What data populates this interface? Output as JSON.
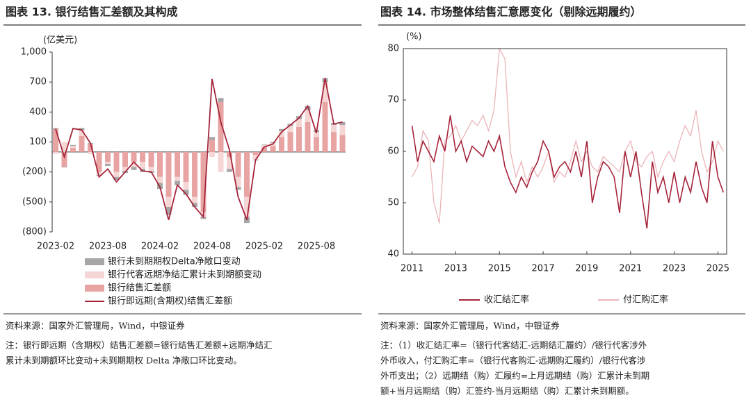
{
  "chart_data": [
    {
      "type": "bar",
      "title": "图表 13. 银行结售汇差额及其构成",
      "y_label": "(亿美元)",
      "categories": [
        "2023-02",
        null,
        null,
        null,
        null,
        null,
        "2023-08",
        null,
        null,
        null,
        null,
        null,
        "2024-02",
        null,
        null,
        null,
        null,
        null,
        "2024-08",
        null,
        null,
        null,
        null,
        null,
        "2025-02",
        null,
        null,
        null,
        null,
        null,
        "2025-08",
        null,
        null,
        null
      ],
      "ylim": [
        -800,
        1000
      ],
      "yticks": [
        {
          "value": 1000,
          "label": "1,000"
        },
        700,
        400,
        100,
        {
          "value": -200,
          "label": "(200)"
        },
        {
          "value": -500,
          "label": "(500)"
        },
        {
          "value": -800,
          "label": "(800)"
        }
      ],
      "negative_tick_color": "#c00000",
      "series": [
        {
          "name": "银行未到期期权Delta净敞口变动",
          "type": "bar",
          "color": "#a6a6a6",
          "values": [
            10,
            -5,
            10,
            20,
            10,
            -10,
            -20,
            -30,
            -20,
            -30,
            -30,
            -20,
            -60,
            -80,
            -40,
            -50,
            -40,
            -20,
            30,
            40,
            -30,
            -30,
            -60,
            -5,
            5,
            10,
            20,
            20,
            30,
            40,
            20,
            40,
            20,
            30
          ]
        },
        {
          "name": "银行代客远期净结汇累计未到期额变动",
          "type": "bar",
          "color": "#f6d5d5",
          "values": [
            -20,
            100,
            20,
            60,
            -20,
            -30,
            -20,
            -50,
            -40,
            -50,
            -70,
            -40,
            -60,
            -100,
            -40,
            -80,
            -60,
            -50,
            -50,
            -200,
            -120,
            -100,
            -200,
            -50,
            20,
            30,
            60,
            60,
            80,
            120,
            50,
            200,
            70,
            100
          ]
        },
        {
          "name": "银行结售汇差额",
          "type": "bar",
          "color": "#e8a3a3",
          "values": [
            230,
            -150,
            40,
            160,
            80,
            -200,
            -100,
            -200,
            -150,
            -100,
            -100,
            -150,
            -250,
            -450,
            -250,
            -300,
            -450,
            -600,
            120,
            500,
            -50,
            -250,
            -450,
            -30,
            50,
            60,
            150,
            200,
            250,
            300,
            150,
            500,
            200,
            170
          ]
        },
        {
          "name": "银行即远期(含期权)结售汇差额",
          "type": "line",
          "color": "#a5243a",
          "values": [
            230,
            -50,
            235,
            220,
            90,
            -250,
            -170,
            -300,
            -200,
            -100,
            -190,
            -200,
            -350,
            -680,
            -330,
            -420,
            -550,
            -650,
            730,
            300,
            20,
            -450,
            -680,
            -80,
            50,
            80,
            200,
            270,
            340,
            460,
            190,
            740,
            280,
            300
          ]
        }
      ],
      "source": "资料来源：国家外汇管理局，Wind，中银证券",
      "notes": [
        "注：银行即远期（含期权）结售汇差额=银行结售汇差额+远期净结汇",
        "累计未到期额环比变动+未到期期权 Delta 净敞口环比变动。"
      ]
    },
    {
      "type": "line",
      "title": "图表 14. 市场整体结售汇意愿变化（剔除远期履约）",
      "y_label": "(%)",
      "xlim": [
        2010.6,
        2025.4
      ],
      "xticks": [
        2011,
        2013,
        2015,
        2017,
        2019,
        2021,
        2023,
        2025
      ],
      "ylim": [
        40,
        80
      ],
      "yticks": [
        40,
        50,
        60,
        70,
        80
      ],
      "x": [
        2011,
        2011.25,
        2011.5,
        2011.75,
        2012,
        2012.25,
        2012.5,
        2012.75,
        2013,
        2013.25,
        2013.5,
        2013.75,
        2014,
        2014.25,
        2014.5,
        2014.75,
        2015,
        2015.25,
        2015.5,
        2015.75,
        2016,
        2016.25,
        2016.5,
        2016.75,
        2017,
        2017.25,
        2017.5,
        2017.75,
        2018,
        2018.25,
        2018.5,
        2018.75,
        2019,
        2019.25,
        2019.5,
        2019.75,
        2020,
        2020.25,
        2020.5,
        2020.75,
        2021,
        2021.25,
        2021.5,
        2021.75,
        2022,
        2022.25,
        2022.5,
        2022.75,
        2023,
        2023.25,
        2023.5,
        2023.75,
        2024,
        2024.25,
        2024.5,
        2024.75,
        2025,
        2025.25
      ],
      "legend": "bottom",
      "series": [
        {
          "name": "收汇结汇率",
          "color": "#a5243a",
          "width": 1.6,
          "values": [
            65,
            58,
            62,
            60,
            58,
            63,
            60,
            67,
            60,
            62,
            58,
            61,
            60,
            59,
            62,
            60,
            63,
            57,
            54,
            52,
            55,
            53,
            56,
            58,
            62,
            60,
            55,
            57,
            58,
            56,
            60,
            55,
            62,
            50,
            55,
            58,
            57,
            55,
            48,
            60,
            55,
            60,
            52,
            45,
            58,
            52,
            55,
            50,
            56,
            50,
            55,
            52,
            58,
            53,
            50,
            62,
            55,
            52
          ]
        },
        {
          "name": "付汇购汇率",
          "color": "#ebb4b8",
          "width": 1.3,
          "values": [
            55,
            57,
            64,
            62,
            50,
            46,
            62,
            63,
            65,
            62,
            64,
            66,
            65,
            67,
            64,
            68,
            80,
            78,
            60,
            55,
            58,
            54,
            57,
            55,
            57,
            60,
            54,
            56,
            55,
            58,
            62,
            58,
            60,
            57,
            56,
            59,
            58,
            57,
            56,
            60,
            62,
            58,
            57,
            59,
            60,
            55,
            58,
            60,
            58,
            62,
            65,
            63,
            68,
            60,
            56,
            58,
            62,
            60
          ]
        }
      ],
      "source": "资料来源：国家外汇管理局，Wind，中银证券",
      "notes": [
        "注：（1）收汇结汇率=（银行代客结汇-远期结汇履约）/银行代客涉外",
        "外币收入，付汇购汇率=（银行代客购汇-远期购汇履约）/银行代客涉",
        "外币支出；（2）远期结（购）汇履约=上月远期结（购）汇累计未到期",
        "额+当月远期结（购）汇签约-当月远期结（购）汇累计未到期额。"
      ]
    }
  ]
}
